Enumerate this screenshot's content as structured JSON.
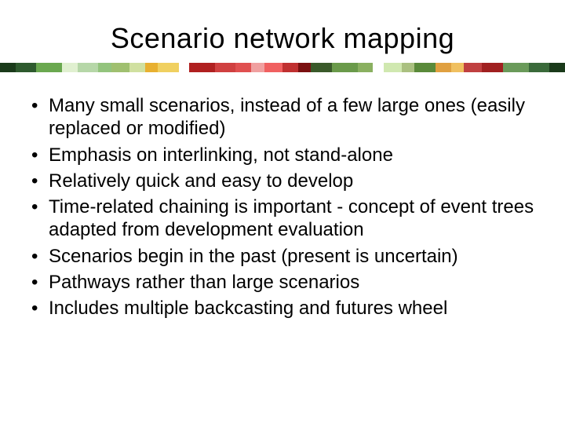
{
  "title": "Scenario network mapping",
  "divider_colors": [
    {
      "c": "#1a3a1a",
      "w": 6
    },
    {
      "c": "#2e5a2e",
      "w": 8
    },
    {
      "c": "#6aa84f",
      "w": 10
    },
    {
      "c": "#e0f0d0",
      "w": 6
    },
    {
      "c": "#b6d7a8",
      "w": 8
    },
    {
      "c": "#93c47d",
      "w": 5
    },
    {
      "c": "#a0c070",
      "w": 7
    },
    {
      "c": "#d0e0a0",
      "w": 6
    },
    {
      "c": "#e8b030",
      "w": 5
    },
    {
      "c": "#f0d060",
      "w": 8
    },
    {
      "c": "#ffffff",
      "w": 4
    },
    {
      "c": "#b02020",
      "w": 10
    },
    {
      "c": "#d04040",
      "w": 8
    },
    {
      "c": "#e05050",
      "w": 6
    },
    {
      "c": "#f0a0a0",
      "w": 5
    },
    {
      "c": "#f06060",
      "w": 7
    },
    {
      "c": "#c03030",
      "w": 6
    },
    {
      "c": "#7a1010",
      "w": 5
    },
    {
      "c": "#3a5a2a",
      "w": 8
    },
    {
      "c": "#6a9a4a",
      "w": 10
    },
    {
      "c": "#8ab060",
      "w": 6
    },
    {
      "c": "#ffffff",
      "w": 4
    },
    {
      "c": "#d0e8b0",
      "w": 7
    },
    {
      "c": "#aac080",
      "w": 5
    },
    {
      "c": "#5a8a3a",
      "w": 8
    },
    {
      "c": "#e0a040",
      "w": 6
    },
    {
      "c": "#f0c060",
      "w": 5
    },
    {
      "c": "#c04040",
      "w": 7
    },
    {
      "c": "#a02020",
      "w": 8
    },
    {
      "c": "#6a9a5a",
      "w": 10
    },
    {
      "c": "#3a6a3a",
      "w": 8
    },
    {
      "c": "#1a3a1a",
      "w": 6
    }
  ],
  "bullets": [
    "Many small scenarios, instead of a few large ones (easily replaced or modified)",
    "Emphasis on interlinking, not stand-alone",
    "Relatively quick and easy to develop",
    "Time-related chaining is important - concept of event trees adapted from development evaluation",
    "Scenarios begin in the past (present is uncertain)",
    "Pathways rather than large scenarios",
    "Includes multiple backcasting and futures wheel"
  ],
  "styles": {
    "title_fontsize": 36,
    "title_color": "#000000",
    "bullet_fontsize": 24,
    "bullet_color": "#000000",
    "background": "#ffffff"
  }
}
